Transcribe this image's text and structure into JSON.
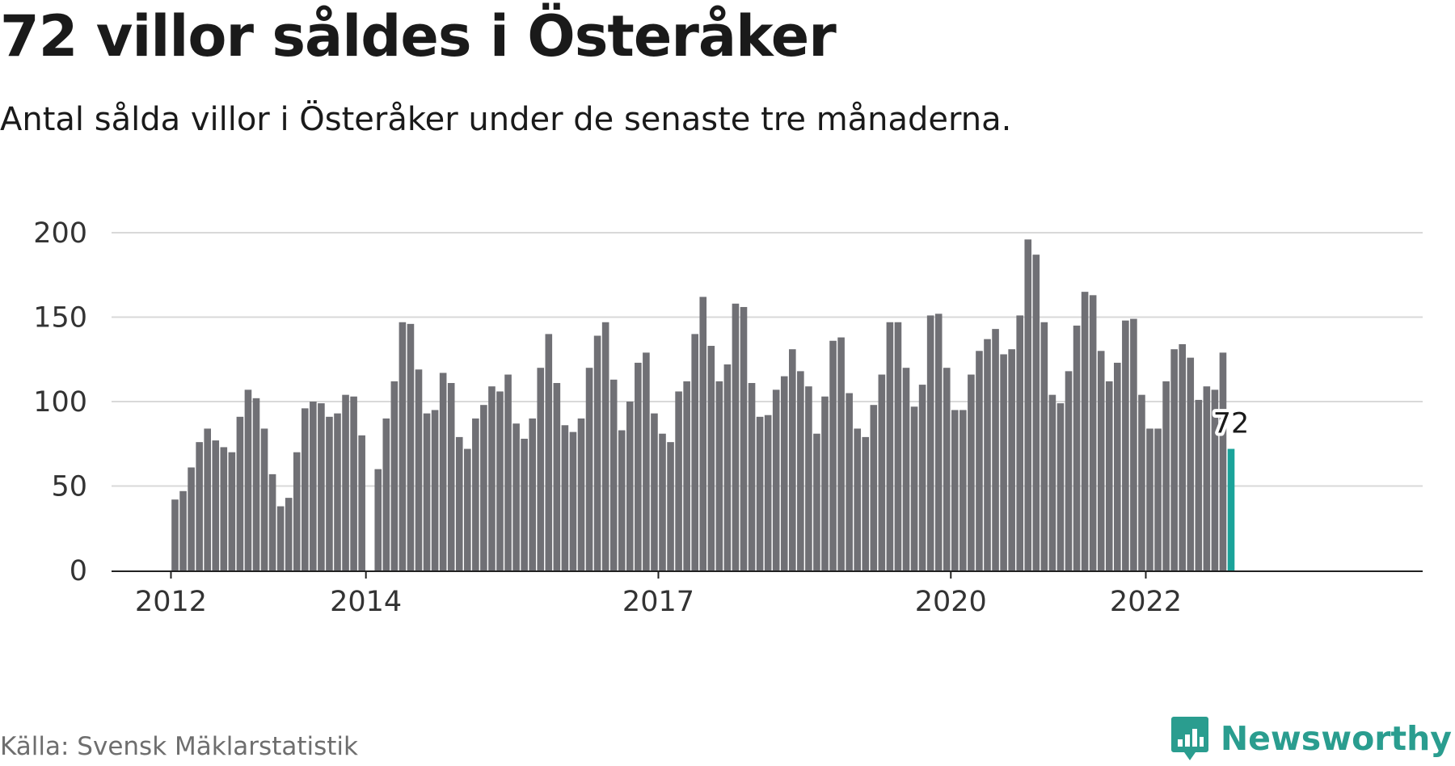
{
  "title": "72 villor såldes i Österåker",
  "subtitle": "Antal sålda villor i Österåker under de senaste tre månaderna.",
  "source": "Källa: Svensk Mäklarstatistik",
  "brand": {
    "name": "Newsworthy",
    "color": "#2a9d8f",
    "logo_icon": "bar-chart-speech-bubble-icon"
  },
  "colors": {
    "bar": "#707075",
    "highlight": "#1aa39a",
    "grid": "#d9d9d9",
    "axis": "#222222"
  },
  "chart_data": {
    "type": "bar",
    "title": "72 villor såldes i Österåker",
    "xlabel": "",
    "ylabel": "",
    "ylim": [
      0,
      200
    ],
    "grid": true,
    "y_ticks": [
      0,
      50,
      100,
      150,
      200
    ],
    "x_ticks": [
      {
        "label": "2012",
        "at": "2012-01"
      },
      {
        "label": "2014",
        "at": "2014-01"
      },
      {
        "label": "2017",
        "at": "2017-01"
      },
      {
        "label": "2020",
        "at": "2020-01"
      },
      {
        "label": "2022",
        "at": "2022-01"
      }
    ],
    "start_month": "2012-01",
    "values": [
      42,
      47,
      61,
      76,
      84,
      77,
      73,
      70,
      91,
      107,
      102,
      84,
      57,
      38,
      43,
      70,
      96,
      100,
      99,
      91,
      93,
      104,
      103,
      80,
      null,
      60,
      90,
      112,
      147,
      146,
      119,
      93,
      95,
      117,
      111,
      79,
      72,
      90,
      98,
      109,
      106,
      116,
      87,
      78,
      90,
      120,
      140,
      111,
      86,
      82,
      90,
      120,
      139,
      147,
      113,
      83,
      100,
      123,
      129,
      93,
      81,
      76,
      106,
      112,
      140,
      162,
      133,
      112,
      122,
      158,
      156,
      111,
      91,
      92,
      107,
      115,
      131,
      118,
      109,
      81,
      103,
      136,
      138,
      105,
      84,
      79,
      98,
      116,
      147,
      147,
      120,
      97,
      110,
      151,
      152,
      120,
      95,
      95,
      116,
      130,
      137,
      143,
      128,
      131,
      151,
      196,
      187,
      147,
      104,
      99,
      118,
      145,
      165,
      163,
      130,
      112,
      123,
      148,
      149,
      104,
      84,
      84,
      112,
      131,
      134,
      126,
      101,
      109,
      107,
      129,
      72
    ],
    "highlight": {
      "index": 130,
      "label": "72"
    }
  }
}
